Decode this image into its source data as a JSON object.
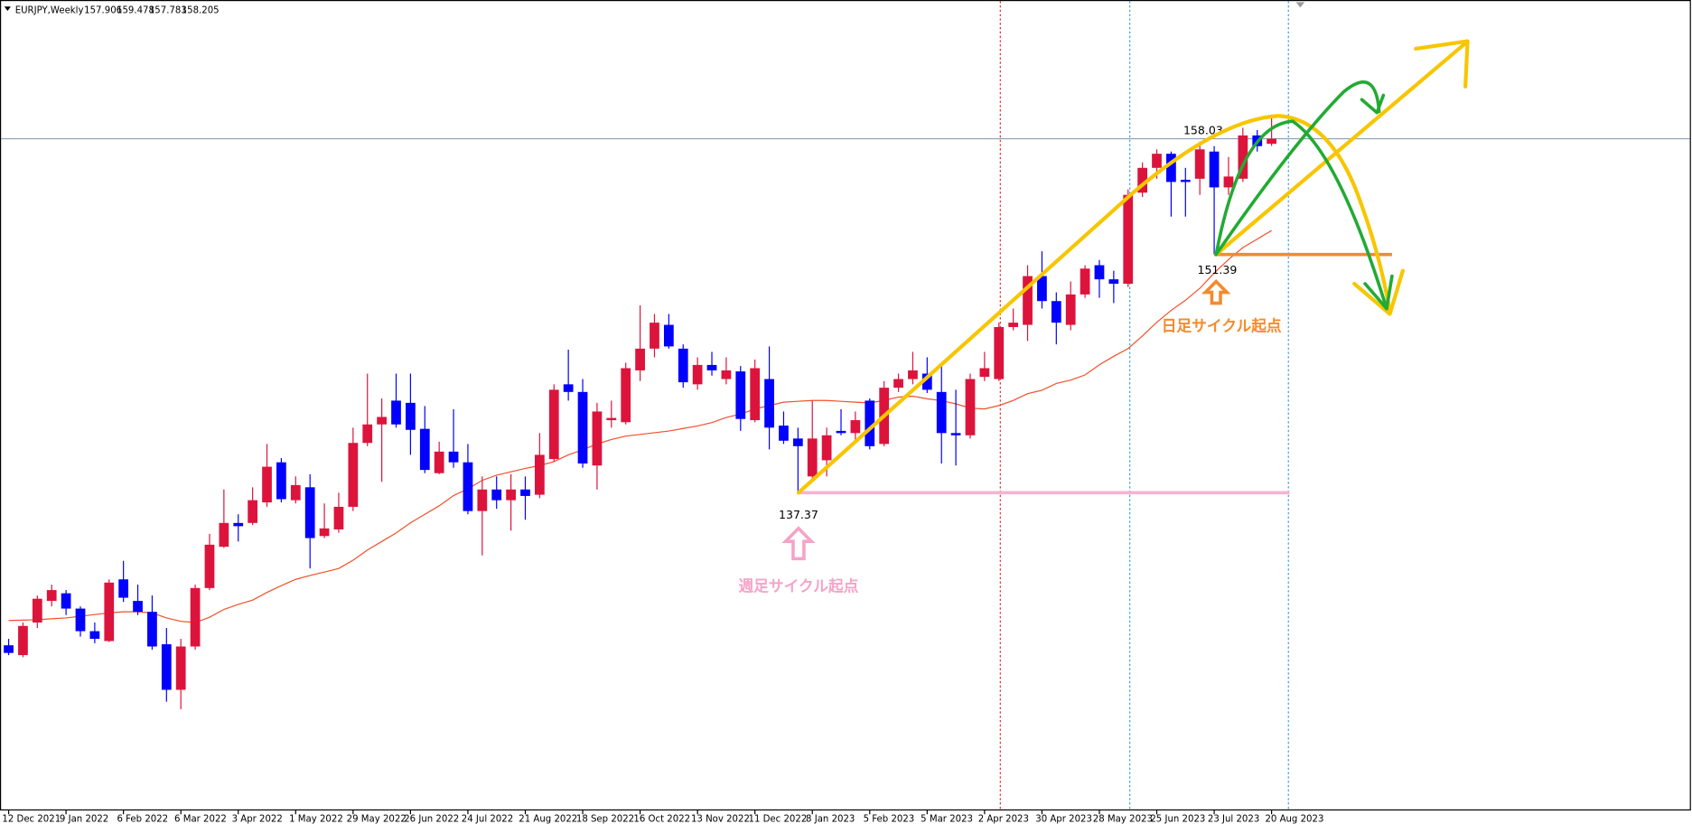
{
  "chart_data": {
    "type": "candlestick",
    "title": "EURJPY,Weekly",
    "categories": [
      "12 Dec 2021",
      null,
      null,
      null,
      "9 Jan 2022",
      null,
      null,
      null,
      "6 Feb 2022",
      null,
      null,
      null,
      "6 Mar 2022",
      null,
      null,
      null,
      "3 Apr 2022",
      null,
      null,
      null,
      "1 May 2022",
      null,
      null,
      null,
      "29 May 2022",
      null,
      null,
      null,
      "26 Jun 2022",
      null,
      null,
      null,
      "24 Jul 2022",
      null,
      null,
      null,
      "21 Aug 2022",
      null,
      null,
      null,
      "18 Sep 2022",
      null,
      null,
      null,
      "16 Oct 2022",
      null,
      null,
      null,
      "13 Nov 2022",
      null,
      null,
      null,
      "11 Dec 2022",
      null,
      null,
      null,
      "8 Jan 2023",
      null,
      null,
      null,
      "5 Feb 2023",
      null,
      null,
      null,
      "5 Mar 2023",
      null,
      null,
      null,
      "2 Apr 2023",
      null,
      null,
      null,
      "30 Apr 2023",
      null,
      null,
      null,
      "28 May 2023",
      null,
      null,
      null,
      "25 Jun 2023",
      null,
      null,
      null,
      "23 Jul 2023",
      null,
      null,
      null,
      "20 Aug 2023"
    ],
    "open": [
      128.39,
      127.81,
      129.73,
      131.0,
      131.45,
      130.55,
      129.22,
      128.64,
      132.27,
      131.0,
      130.36,
      128.45,
      125.77,
      128.32,
      131.76,
      134.19,
      135.59,
      135.59,
      136.8,
      139.16,
      136.93,
      137.69,
      134.82,
      135.21,
      136.54,
      140.3,
      141.39,
      142.79,
      142.66,
      141.13,
      138.52,
      139.79,
      139.16,
      136.29,
      137.56,
      136.93,
      137.56,
      137.25,
      139.35,
      143.75,
      143.3,
      138.97,
      141.64,
      141.52,
      144.57,
      145.85,
      147.25,
      145.85,
      143.75,
      144.89,
      144.06,
      144.51,
      141.64,
      144.06,
      141.32,
      140.56,
      138.33,
      139.28,
      141.01,
      140.88,
      142.79,
      140.24,
      143.55,
      144.06,
      144.38,
      143.3,
      140.88,
      140.75,
      144.19,
      144.06,
      147.12,
      147.25,
      150.12,
      148.65,
      147.25,
      149.04,
      150.76,
      149.93,
      149.67,
      155.03,
      156.49,
      157.32,
      155.79,
      155.85,
      157.45,
      155.34,
      155.85,
      158.4,
      157.906
    ],
    "high": [
      128.77,
      129.73,
      131.32,
      131.96,
      131.64,
      130.68,
      129.73,
      132.27,
      133.36,
      131.96,
      131.32,
      129.41,
      128.77,
      131.96,
      134.95,
      137.56,
      136.1,
      137.69,
      140.24,
      139.41,
      138.33,
      138.46,
      136.74,
      137.37,
      141.2,
      144.38,
      142.92,
      144.38,
      144.38,
      142.47,
      140.37,
      142.28,
      140.24,
      138.33,
      138.33,
      138.46,
      138.33,
      140.88,
      143.75,
      145.79,
      144.06,
      142.66,
      142.79,
      145.02,
      148.4,
      147.89,
      147.89,
      146.1,
      145.34,
      145.66,
      145.34,
      144.83,
      145.21,
      145.98,
      142.15,
      141.2,
      142.79,
      141.2,
      142.28,
      142.15,
      142.92,
      143.94,
      144.38,
      145.66,
      145.34,
      145.02,
      143.43,
      144.38,
      145.66,
      147.38,
      148.21,
      150.76,
      151.58,
      149.16,
      149.8,
      150.76,
      151.07,
      150.44,
      155.22,
      156.81,
      157.58,
      157.45,
      156.49,
      158.03,
      157.77,
      157.13,
      158.85,
      158.72,
      159.478
    ],
    "low": [
      127.81,
      127.69,
      129.41,
      130.68,
      130.17,
      128.9,
      128.51,
      128.58,
      130.94,
      130.17,
      128.13,
      125.07,
      124.63,
      128.13,
      131.64,
      134.12,
      134.5,
      135.46,
      136.54,
      136.8,
      136.74,
      132.91,
      134.7,
      135.02,
      136.29,
      140.11,
      138.01,
      141.2,
      139.6,
      138.52,
      138.46,
      138.84,
      136.1,
      133.68,
      136.42,
      135.14,
      135.78,
      137.05,
      139.22,
      142.79,
      138.84,
      137.56,
      141.2,
      141.39,
      143.94,
      145.34,
      145.85,
      143.55,
      143.43,
      144.26,
      143.75,
      141.01,
      141.52,
      139.92,
      140.24,
      137.37,
      138.01,
      138.33,
      140.75,
      140.24,
      139.92,
      140.11,
      143.3,
      143.75,
      143.24,
      139.09,
      138.97,
      140.56,
      143.94,
      143.94,
      146.93,
      146.3,
      148.21,
      146.1,
      146.93,
      148.84,
      148.84,
      148.53,
      149.48,
      154.77,
      155.85,
      153.62,
      153.62,
      154.9,
      151.39,
      154.9,
      155.66,
      157.45,
      157.783
    ],
    "close": [
      127.94,
      129.53,
      131.13,
      131.64,
      130.55,
      129.22,
      128.77,
      132.08,
      131.19,
      130.36,
      128.32,
      125.77,
      128.32,
      131.76,
      134.31,
      135.59,
      135.4,
      136.93,
      138.9,
      136.99,
      137.82,
      134.7,
      135.27,
      136.54,
      140.3,
      141.39,
      141.83,
      141.39,
      141.07,
      138.71,
      139.79,
      139.16,
      136.29,
      137.56,
      136.93,
      137.56,
      137.18,
      139.6,
      143.43,
      143.3,
      139.09,
      142.15,
      141.77,
      144.7,
      145.85,
      147.38,
      145.98,
      143.87,
      144.89,
      144.57,
      144.57,
      141.71,
      144.7,
      141.2,
      140.43,
      140.11,
      140.56,
      140.75,
      140.88,
      141.64,
      140.11,
      143.55,
      144.06,
      144.57,
      143.43,
      140.88,
      140.75,
      144.06,
      144.7,
      147.12,
      147.38,
      150.12,
      148.65,
      147.38,
      149.04,
      150.56,
      149.93,
      149.67,
      154.9,
      156.49,
      157.32,
      155.66,
      155.66,
      157.58,
      155.34,
      155.98,
      158.4,
      157.77,
      158.205
    ],
    "ma": {
      "color": "#f0502a",
      "values": [
        129.85,
        129.87,
        129.9,
        129.95,
        130.0,
        130.1,
        130.2,
        130.3,
        130.36,
        130.36,
        130.3,
        130.0,
        129.8,
        129.73,
        130.04,
        130.5,
        130.8,
        131.05,
        131.5,
        131.9,
        132.27,
        132.5,
        132.7,
        132.91,
        133.4,
        134.0,
        134.5,
        135.0,
        135.6,
        136.1,
        136.6,
        137.2,
        137.6,
        138.1,
        138.4,
        138.6,
        138.8,
        138.97,
        139.2,
        139.6,
        139.9,
        140.24,
        140.5,
        140.7,
        140.8,
        140.9,
        141.0,
        141.15,
        141.3,
        141.5,
        141.8,
        142.0,
        142.3,
        142.5,
        142.7,
        142.75,
        142.8,
        142.8,
        142.75,
        142.7,
        142.66,
        142.8,
        143.0,
        143.05,
        142.9,
        142.79,
        142.6,
        142.35,
        142.3,
        142.5,
        142.8,
        143.2,
        143.4,
        143.8,
        144.0,
        144.3,
        144.9,
        145.4,
        145.85,
        146.6,
        147.4,
        148.1,
        148.7,
        149.4,
        150.3,
        151.1,
        151.8,
        152.3,
        152.8
      ]
    },
    "up_color": "#dc143c",
    "down_color": "#0000ff",
    "ylim": [
      118.7,
      166.37
    ],
    "level_labels": [
      158.03,
      151.39,
      137.37
    ],
    "notes": [
      "週足サイクル起点",
      "日足サイクル起点"
    ]
  }
}
